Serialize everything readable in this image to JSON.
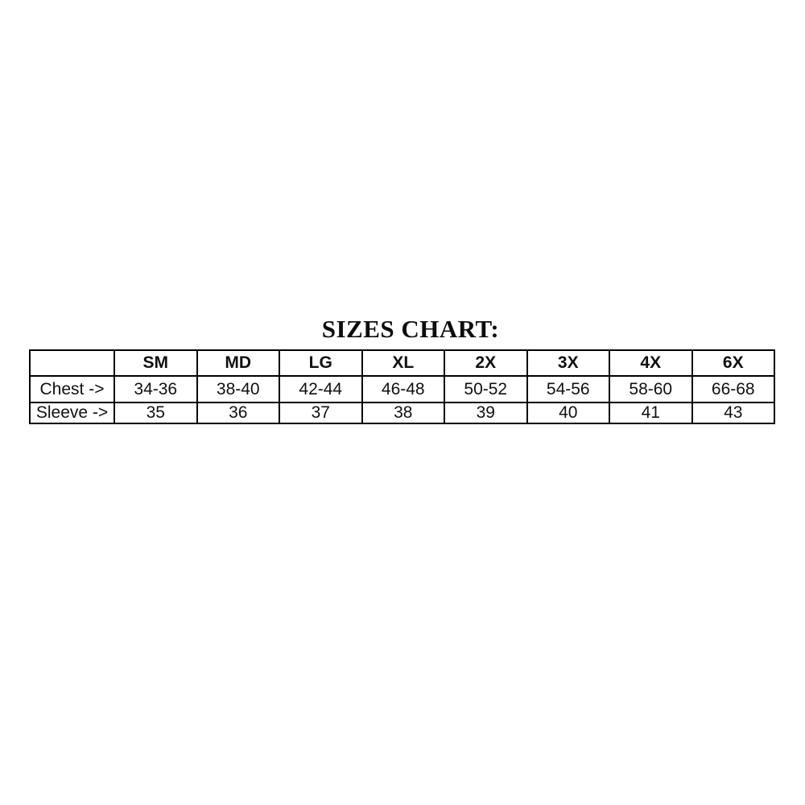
{
  "page": {
    "background": "#ffffff",
    "text_color": "#111111",
    "border_color": "#000000"
  },
  "title": "SIZES CHART:",
  "table": {
    "columns": [
      "",
      "SM",
      "MD",
      "LG",
      "XL",
      "2X",
      "3X",
      "4X",
      "6X"
    ],
    "rows": [
      {
        "label": "Chest ->",
        "values": [
          "34-36",
          "38-40",
          "42-44",
          "46-48",
          "50-52",
          "54-56",
          "58-60",
          "66-68"
        ]
      },
      {
        "label": "Sleeve ->",
        "values": [
          "35",
          "36",
          "37",
          "38",
          "39",
          "40",
          "41",
          "43"
        ]
      }
    ]
  },
  "chart_data": {
    "type": "table",
    "title": "SIZES CHART:",
    "columns": [
      "",
      "SM",
      "MD",
      "LG",
      "XL",
      "2X",
      "3X",
      "4X",
      "6X"
    ],
    "rows": [
      [
        "Chest ->",
        "34-36",
        "38-40",
        "42-44",
        "46-48",
        "50-52",
        "54-56",
        "58-60",
        "66-68"
      ],
      [
        "Sleeve ->",
        "35",
        "36",
        "37",
        "38",
        "39",
        "40",
        "41",
        "43"
      ]
    ]
  }
}
